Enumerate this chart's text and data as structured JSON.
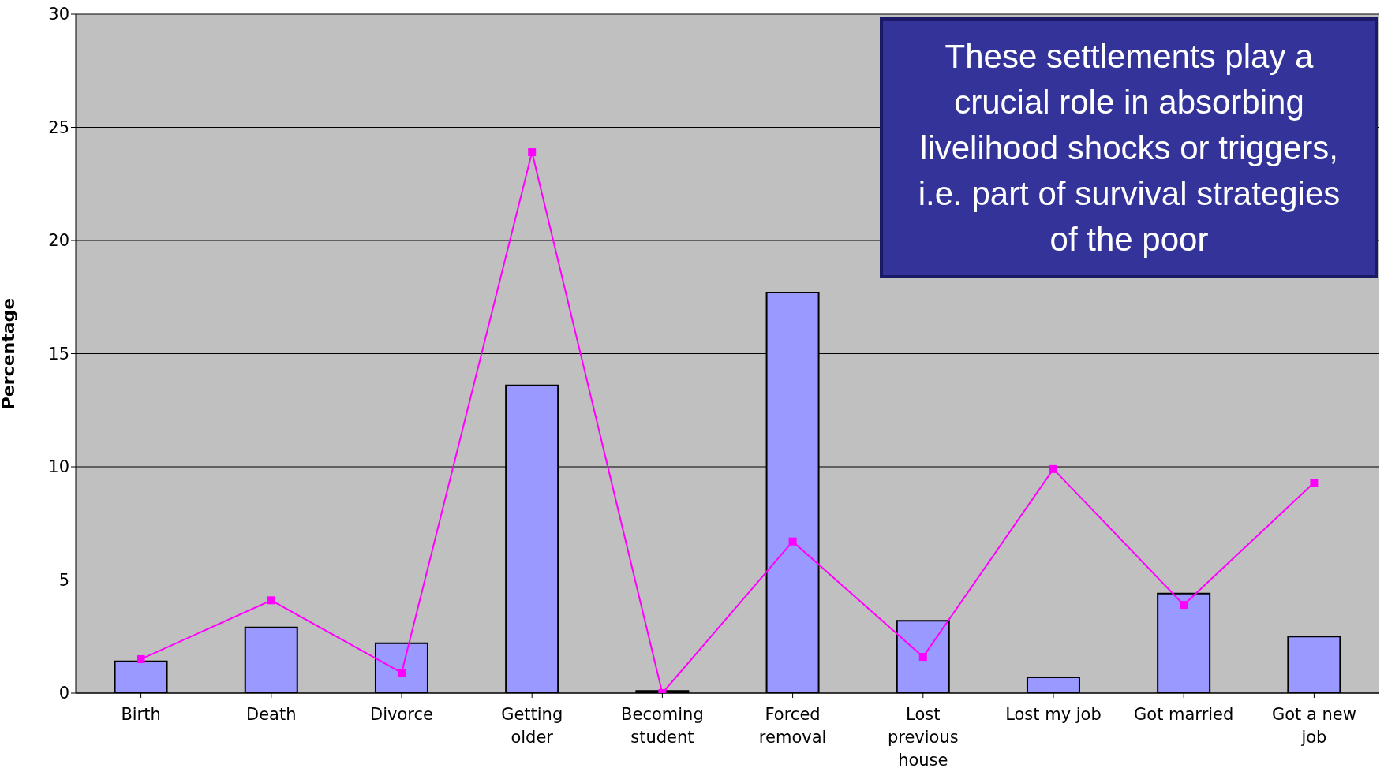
{
  "chart_data": {
    "type": "bar",
    "ylabel": "Percentage",
    "categories": [
      "Birth",
      "Death",
      "Divorce",
      "Getting older",
      "Becoming student",
      "Forced removal",
      "Lost previous house",
      "Lost my job",
      "Got married",
      "Got a new job"
    ],
    "series": [
      {
        "color": "#9999ff",
        "values": [
          1.4,
          2.9,
          2.2,
          13.6,
          0.1,
          17.7,
          3.2,
          0.7,
          4.4,
          2.5
        ]
      },
      {
        "type": "line",
        "color": "#ff00ff",
        "values": [
          1.5,
          4.1,
          0.9,
          23.9,
          0,
          6.7,
          1.6,
          9.9,
          3.9,
          9.3
        ]
      }
    ],
    "ylim": [
      0,
      30
    ],
    "yticks": [
      0,
      5,
      10,
      15,
      20,
      25,
      30
    ],
    "grid": "y",
    "marker": "square",
    "line_style": "solid",
    "annotations": [
      "These settlements play a crucial role in absorbing livelihood shocks or triggers, i.e. part of survival strategies of the poor"
    ]
  }
}
